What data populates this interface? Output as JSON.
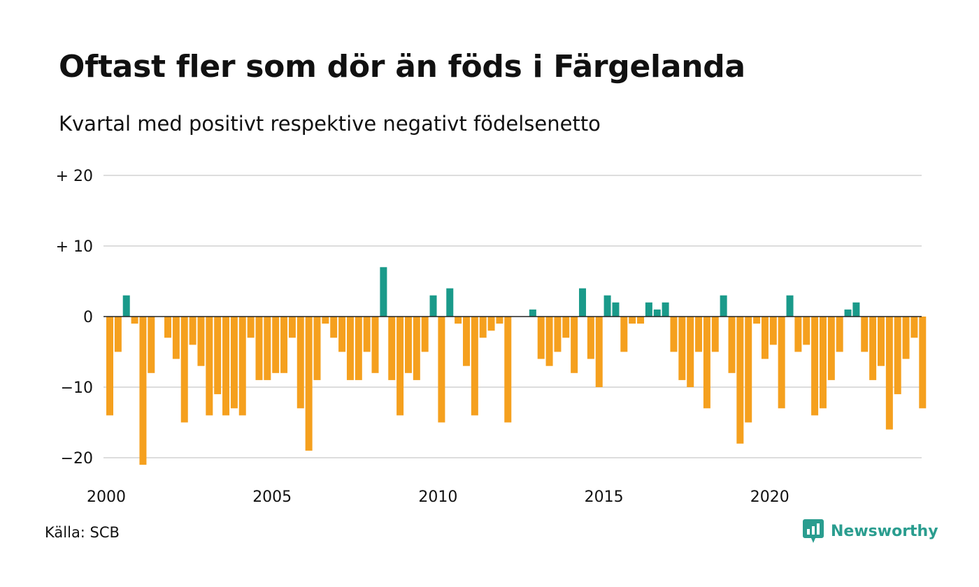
{
  "title": "Oftast fler som dör än föds i Färgelanda",
  "subtitle": "Kvartal med positivt respektive negativt födelsenetto",
  "source": "Källa: SCB",
  "brand": "Newsworthy",
  "colors": {
    "positive": "#1a9a8a",
    "negative": "#f5a01e",
    "grid": "#dddddd",
    "zero": "#222222",
    "brand": "#2a9d8f"
  },
  "chart_data": {
    "type": "bar",
    "x_start": "2000 Q1",
    "x_step": "quarter",
    "ylim": [
      -22,
      20
    ],
    "yticks": [
      {
        "value": 20,
        "label": "+ 20"
      },
      {
        "value": 10,
        "label": "+ 10"
      },
      {
        "value": 0,
        "label": "0"
      },
      {
        "value": -10,
        "label": "−10"
      },
      {
        "value": -20,
        "label": "−20"
      }
    ],
    "xticks": [
      {
        "year": 2000,
        "label": "2000"
      },
      {
        "year": 2005,
        "label": "2005"
      },
      {
        "year": 2010,
        "label": "2010"
      },
      {
        "year": 2015,
        "label": "2015"
      },
      {
        "year": 2020,
        "label": "2020"
      }
    ],
    "grid": true,
    "values": [
      -14,
      -5,
      3,
      -1,
      -21,
      -8,
      0,
      -3,
      -6,
      -15,
      -4,
      -7,
      -14,
      -11,
      -14,
      -13,
      -14,
      -3,
      -9,
      -9,
      -8,
      -8,
      -3,
      -13,
      -19,
      -9,
      -1,
      -3,
      -5,
      -9,
      -9,
      -5,
      -8,
      7,
      -9,
      -14,
      -8,
      -9,
      -5,
      3,
      -15,
      4,
      -1,
      -7,
      -14,
      -3,
      -2,
      -1,
      -15,
      0,
      0,
      1,
      -6,
      -7,
      -5,
      -3,
      -8,
      4,
      -6,
      -10,
      3,
      2,
      -5,
      -1,
      -1,
      2,
      1,
      2,
      -5,
      -9,
      -10,
      -5,
      -13,
      -5,
      3,
      -8,
      -18,
      -15,
      -1,
      -6,
      -4,
      -13,
      3,
      -5,
      -4,
      -14,
      -13,
      -9,
      -5,
      1,
      2,
      -5,
      -9,
      -7,
      -16,
      -11,
      -6,
      -3,
      -13
    ]
  }
}
